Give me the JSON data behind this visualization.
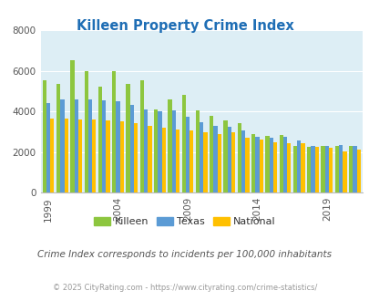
{
  "title": "Killeen Property Crime Index",
  "years": [
    1999,
    2000,
    2001,
    2002,
    2003,
    2004,
    2005,
    2006,
    2007,
    2008,
    2009,
    2010,
    2011,
    2012,
    2013,
    2014,
    2015,
    2016,
    2017,
    2018,
    2019,
    2020,
    2021
  ],
  "killeen": [
    5550,
    5350,
    6500,
    6000,
    5200,
    6000,
    5350,
    5550,
    4100,
    4600,
    4800,
    4050,
    3800,
    3550,
    3400,
    2900,
    2800,
    2850,
    2300,
    2250,
    2300,
    2300,
    2300
  ],
  "texas": [
    4400,
    4600,
    4600,
    4600,
    4550,
    4500,
    4300,
    4100,
    4000,
    4050,
    3750,
    3450,
    3300,
    3250,
    3050,
    2750,
    2700,
    2750,
    2550,
    2300,
    2300,
    2350,
    2300
  ],
  "national": [
    3650,
    3650,
    3600,
    3600,
    3550,
    3500,
    3400,
    3300,
    3200,
    3100,
    3050,
    2950,
    2900,
    2950,
    2700,
    2600,
    2500,
    2450,
    2450,
    2250,
    2200,
    2050,
    2100
  ],
  "killeen_color": "#8dc63f",
  "texas_color": "#5b9bd5",
  "national_color": "#ffc000",
  "bg_color": "#ddeef5",
  "title_color": "#1f6eb5",
  "subtitle": "Crime Index corresponds to incidents per 100,000 inhabitants",
  "subtitle_color": "#555555",
  "footer": "© 2025 CityRating.com - https://www.cityrating.com/crime-statistics/",
  "footer_color": "#999999",
  "xtick_years": [
    1999,
    2004,
    2009,
    2014,
    2019
  ],
  "ylim": [
    0,
    8000
  ]
}
